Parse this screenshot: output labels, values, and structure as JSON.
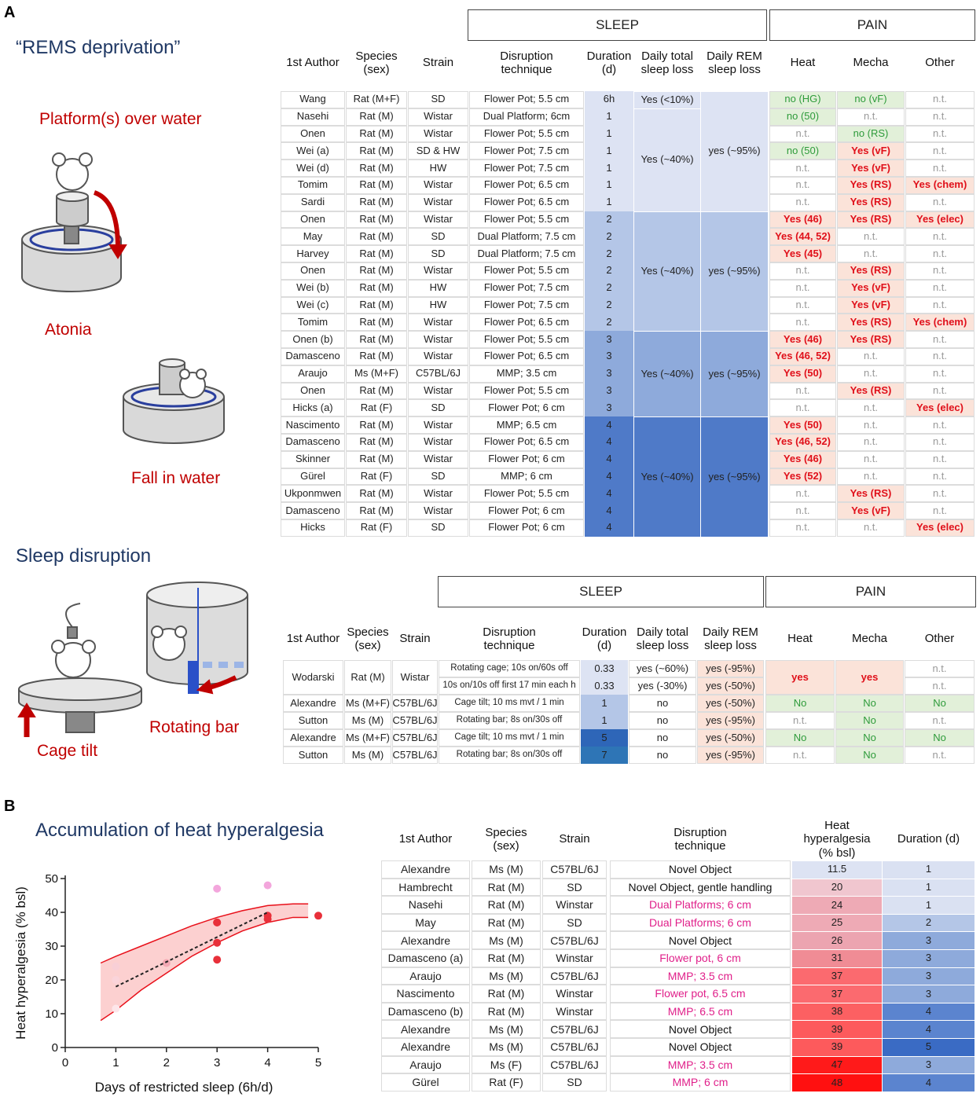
{
  "panel_a": {
    "label": "A",
    "rems": {
      "title": "“REMS deprivation”",
      "labels": [
        "Platform(s) over water",
        "Atonia",
        "Fall in water"
      ]
    },
    "disruption": {
      "title": "Sleep disruption",
      "labels": [
        "Cage tilt",
        "Rotating bar"
      ]
    },
    "table_1": {
      "groups": [
        "SLEEP",
        "PAIN"
      ],
      "headers": [
        "1st Author",
        "Species (sex)",
        "Strain",
        "Disruption technique",
        "Duration (d)",
        "Daily total sleep loss",
        "Daily REM sleep loss",
        "Heat",
        "Mecha",
        "Other"
      ],
      "rows": [
        [
          "Wang",
          "Rat (M+F)",
          "SD",
          "Flower Pot; 5.5 cm",
          "6h",
          "no (HG)",
          "no (vF)",
          "n.t."
        ],
        [
          "Nasehi",
          "Rat (M)",
          "Wistar",
          "Dual Platform; 6cm",
          "1",
          "no (50)",
          "n.t.",
          "n.t."
        ],
        [
          "Onen",
          "Rat (M)",
          "Wistar",
          "Flower Pot; 5.5 cm",
          "1",
          "n.t.",
          "no (RS)",
          "n.t."
        ],
        [
          "Wei (a)",
          "Rat (M)",
          "SD & HW",
          "Flower Pot; 7.5 cm",
          "1",
          "no (50)",
          "Yes (vF)",
          "n.t."
        ],
        [
          "Wei (d)",
          "Rat (M)",
          "HW",
          "Flower Pot; 7.5 cm",
          "1",
          "n.t.",
          "Yes (vF)",
          "n.t."
        ],
        [
          "Tomim",
          "Rat (M)",
          "Wistar",
          "Flower Pot; 6.5 cm",
          "1",
          "n.t.",
          "Yes (RS)",
          "Yes (chem)"
        ],
        [
          "Sardi",
          "Rat (M)",
          "Wistar",
          "Flower Pot; 6.5 cm",
          "1",
          "n.t.",
          "Yes (RS)",
          "n.t."
        ],
        [
          "Onen",
          "Rat (M)",
          "Wistar",
          "Flower Pot; 5.5 cm",
          "2",
          "Yes (46)",
          "Yes (RS)",
          "Yes (elec)"
        ],
        [
          "May",
          "Rat (M)",
          "SD",
          "Dual Platform; 7.5 cm",
          "2",
          "Yes (44, 52)",
          "n.t.",
          "n.t."
        ],
        [
          "Harvey",
          "Rat (M)",
          "SD",
          "Dual Platform; 7.5 cm",
          "2",
          "Yes (45)",
          "n.t.",
          "n.t."
        ],
        [
          "Onen",
          "Rat (M)",
          "Wistar",
          "Flower Pot; 5.5 cm",
          "2",
          "n.t.",
          "Yes (RS)",
          "n.t."
        ],
        [
          "Wei (b)",
          "Rat (M)",
          "HW",
          "Flower Pot; 7.5 cm",
          "2",
          "n.t.",
          "Yes (vF)",
          "n.t."
        ],
        [
          "Wei (c)",
          "Rat (M)",
          "HW",
          "Flower Pot; 7.5 cm",
          "2",
          "n.t.",
          "Yes (vF)",
          "n.t."
        ],
        [
          "Tomim",
          "Rat (M)",
          "Wistar",
          "Flower Pot; 6.5 cm",
          "2",
          "n.t.",
          "Yes (RS)",
          "Yes (chem)"
        ],
        [
          "Onen (b)",
          "Rat (M)",
          "Wistar",
          "Flower Pot; 5.5 cm",
          "3",
          "Yes (46)",
          "Yes (RS)",
          "n.t."
        ],
        [
          "Damasceno",
          "Rat (M)",
          "Wistar",
          "Flower Pot; 6.5 cm",
          "3",
          "Yes (46, 52)",
          "n.t.",
          "n.t."
        ],
        [
          "Araujo",
          "Ms (M+F)",
          "C57BL/6J",
          "MMP; 3.5 cm",
          "3",
          "Yes (50)",
          "n.t.",
          "n.t."
        ],
        [
          "Onen",
          "Rat (M)",
          "Wistar",
          "Flower Pot; 5.5 cm",
          "3",
          "n.t.",
          "Yes (RS)",
          "n.t."
        ],
        [
          "Hicks (a)",
          "Rat (F)",
          "SD",
          "Flower Pot; 6 cm",
          "3",
          "n.t.",
          "n.t.",
          "Yes (elec)"
        ],
        [
          "Nascimento",
          "Rat (M)",
          "Wistar",
          "MMP; 6.5 cm",
          "4",
          "Yes (50)",
          "n.t.",
          "n.t."
        ],
        [
          "Damasceno",
          "Rat (M)",
          "Wistar",
          "Flower Pot; 6.5 cm",
          "4",
          "Yes (46, 52)",
          "n.t.",
          "n.t."
        ],
        [
          "Skinner",
          "Rat (M)",
          "Wistar",
          "Flower Pot; 6 cm",
          "4",
          "Yes (46)",
          "n.t.",
          "n.t."
        ],
        [
          "Gürel",
          "Rat (F)",
          "SD",
          "MMP; 6 cm",
          "4",
          "Yes (52)",
          "n.t.",
          "n.t."
        ],
        [
          "Ukponmwen",
          "Rat (M)",
          "Wistar",
          "Flower Pot; 5.5 cm",
          "4",
          "n.t.",
          "Yes (RS)",
          "n.t."
        ],
        [
          "Damasceno",
          "Rat (M)",
          "Wistar",
          "Flower Pot; 6 cm",
          "4",
          "n.t.",
          "Yes (vF)",
          "n.t."
        ],
        [
          "Hicks",
          "Rat (F)",
          "SD",
          "Flower Pot; 6 cm",
          "4",
          "n.t.",
          "n.t.",
          "Yes (elec)"
        ]
      ],
      "total_loss": [
        {
          "text": "Yes (<10%)",
          "rowspan": 1
        },
        {
          "text": "Yes (~40%)",
          "rowspan": 6
        },
        {
          "text": "Yes (~40%)",
          "rowspan": 7
        },
        {
          "text": "Yes (~40%)",
          "rowspan": 5
        },
        {
          "text": "Yes (~40%)",
          "rowspan": 7
        }
      ],
      "rem_loss": [
        {
          "text": "yes (~95%)",
          "rowspan": 7
        },
        {
          "text": "yes (~95%)",
          "rowspan": 7
        },
        {
          "text": "yes (~95%)",
          "rowspan": 5
        },
        {
          "text": "yes (~95%)",
          "rowspan": 7
        }
      ],
      "duration_colors": {
        "6h": "#dde3f3",
        "1": "#dde3f3",
        "2": "#b4c6e7",
        "3": "#8eaadb",
        "4": "#4f7ac8"
      }
    },
    "table_2": {
      "groups": [
        "SLEEP",
        "PAIN"
      ],
      "headers": [
        "1st Author",
        "Species (sex)",
        "Strain",
        "Disruption technique",
        "Duration (d)",
        "Daily total sleep loss",
        "Daily REM sleep loss",
        "Heat",
        "Mecha",
        "Other"
      ],
      "rows": [
        [
          "Wodarski",
          "Rat (M)",
          "Wistar",
          [
            "Rotating cage; 10s on/60s off",
            "10s on/10s off first 17 min each h"
          ],
          [
            0.33,
            0.33
          ],
          [
            "yes (~60%)",
            "yes (-30%)"
          ],
          [
            "yes (-95%)",
            "yes (-50%)"
          ],
          "yes",
          "yes",
          [
            "n.t.",
            "n.t."
          ]
        ],
        [
          "Alexandre",
          "Ms (M+F)",
          "C57BL/6J",
          "Cage tilt; 10 ms mvt / 1 min",
          1,
          "no",
          "yes (-50%)",
          "No",
          "No",
          "No"
        ],
        [
          "Sutton",
          "Ms (M)",
          "C57BL/6J",
          "Rotating bar; 8s on/30s off",
          1,
          "no",
          "yes (-95%)",
          "n.t.",
          "No",
          "n.t."
        ],
        [
          "Alexandre",
          "Ms (M+F)",
          "C57BL/6J",
          "Cage tilt; 10 ms mvt / 1 min",
          5,
          "no",
          "yes (-50%)",
          "No",
          "No",
          "No"
        ],
        [
          "Sutton",
          "Ms (M)",
          "C57BL/6J",
          "Rotating bar; 8s on/30s off",
          7,
          "no",
          "yes (-95%)",
          "n.t.",
          "No",
          "n.t."
        ]
      ],
      "rem_color": "#fbe3d9",
      "duration_colors": {
        "0.33": "#dde3f3",
        "1": "#b4c6e7",
        "5": "#2e66b8",
        "7": "#2e75b6"
      }
    }
  },
  "panel_b": {
    "label": "B",
    "table": {
      "headers": [
        "1st Author",
        "Species (sex)",
        "Strain",
        "Disruption technique",
        "Heat hyperalgesia (% bsl)",
        "Duration (d)"
      ],
      "rows": [
        {
          "author": "Alexandre",
          "species": "Ms (M)",
          "strain": "C57BL/6J",
          "technique": "Novel Object",
          "heat": 11.5,
          "duration": 1,
          "technique_color": "#111",
          "heat_color": "#dde3f3",
          "point_color": "#fde6ea"
        },
        {
          "author": "Hambrecht",
          "species": "Rat (M)",
          "strain": "SD",
          "technique": "Novel Object, gentle handling",
          "heat": 20,
          "duration": 1,
          "technique_color": "#111",
          "heat_color": "#f0c6cf",
          "point_color": "#fad4da"
        },
        {
          "author": "Nasehi",
          "species": "Rat (M)",
          "strain": "Winstar",
          "technique": "Dual Platforms; 6 cm",
          "heat": 24,
          "duration": 1,
          "technique_color": "#e0208a",
          "heat_color": "#eeaab5",
          "point_color": "#f8cfd6"
        },
        {
          "author": "May",
          "species": "Rat (M)",
          "strain": "SD",
          "technique": "Dual Platforms; 6 cm",
          "heat": 25,
          "duration": 2,
          "technique_color": "#e0208a",
          "heat_color": "#eeaab5",
          "point_color": "#f3a8b3"
        },
        {
          "author": "Alexandre",
          "species": "Ms (M)",
          "strain": "C57BL/6J",
          "technique": "Novel Object",
          "heat": 26,
          "duration": 3,
          "technique_color": "#111",
          "heat_color": "#eca4b0",
          "point_color": "#e8303a"
        },
        {
          "author": "Damasceno (a)",
          "species": "Rat (M)",
          "strain": "Winstar",
          "technique": "Flower pot, 6 cm",
          "heat": 31,
          "duration": 3,
          "technique_color": "#e0208a",
          "heat_color": "#f08c95",
          "point_color": "#e8303a"
        },
        {
          "author": "Araujo",
          "species": "Ms (M)",
          "strain": "C57BL/6J",
          "technique": "MMP; 3.5 cm",
          "heat": 37,
          "duration": 3,
          "technique_color": "#e0208a",
          "heat_color": "#fb6a6f",
          "point_color": "#e8303a"
        },
        {
          "author": "Nascimento",
          "species": "Rat (M)",
          "strain": "Winstar",
          "technique": "Flower pot, 6.5 cm",
          "heat": 37,
          "duration": 3,
          "technique_color": "#e0208a",
          "heat_color": "#fb6a6f",
          "point_color": "#e8303a"
        },
        {
          "author": "Damasceno (b)",
          "species": "Rat (M)",
          "strain": "Winstar",
          "technique": "MMP; 6.5 cm",
          "heat": 38,
          "duration": 4,
          "technique_color": "#e0208a",
          "heat_color": "#fc6062",
          "point_color": "#e8303a"
        },
        {
          "author": "Alexandre",
          "species": "Ms (M)",
          "strain": "C57BL/6J",
          "technique": "Novel Object",
          "heat": 39,
          "duration": 4,
          "technique_color": "#111",
          "heat_color": "#fd5a5c",
          "point_color": "#e8303a"
        },
        {
          "author": "Alexandre",
          "species": "Ms (M)",
          "strain": "C57BL/6J",
          "technique": "Novel Object",
          "heat": 39,
          "duration": 5,
          "technique_color": "#111",
          "heat_color": "#fd5a5c",
          "point_color": "#e8303a"
        },
        {
          "author": "Araujo",
          "species": "Ms (F)",
          "strain": "C57BL/6J",
          "technique": "MMP; 3.5 cm",
          "heat": 47,
          "duration": 3,
          "technique_color": "#e0208a",
          "heat_color": "#ff1a1a",
          "point_color": "#f3a6dc"
        },
        {
          "author": "Gürel",
          "species": "Rat (F)",
          "strain": "SD",
          "technique": "MMP; 6 cm",
          "heat": 48,
          "duration": 4,
          "technique_color": "#e0208a",
          "heat_color": "#ff1010",
          "point_color": "#f3a6dc"
        }
      ],
      "duration_colors": {
        "1": "#dae1f2",
        "2": "#b4c6e7",
        "3": "#8eaadb",
        "4": "#5b84cf",
        "5": "#3a6bc4"
      }
    }
  },
  "chart_data": {
    "type": "scatter",
    "title": "Accumulation of heat hyperalgesia",
    "xlabel": "Days of restricted sleep (6h/d)",
    "ylabel": "Heat hyperalgesia (% bsl)",
    "xlim": [
      0,
      5
    ],
    "ylim": [
      0,
      50
    ],
    "xticks": [
      0,
      1,
      2,
      3,
      4,
      5
    ],
    "yticks": [
      0,
      10,
      20,
      30,
      40,
      50
    ],
    "trend": {
      "x": [
        1,
        4
      ],
      "y": [
        18,
        40
      ],
      "color": "#222"
    },
    "band": {
      "x": [
        0.7,
        1,
        1.5,
        2,
        2.5,
        3,
        3.5,
        4,
        4.5,
        4.8
      ],
      "lower": [
        8,
        11,
        17,
        22,
        27,
        31,
        34.5,
        37,
        38.5,
        38.5
      ],
      "upper": [
        25,
        27,
        30,
        33,
        36,
        38.5,
        40.5,
        42,
        42.5,
        42.5
      ],
      "color": "#e8101a",
      "fill": "#fbc4c4"
    }
  }
}
